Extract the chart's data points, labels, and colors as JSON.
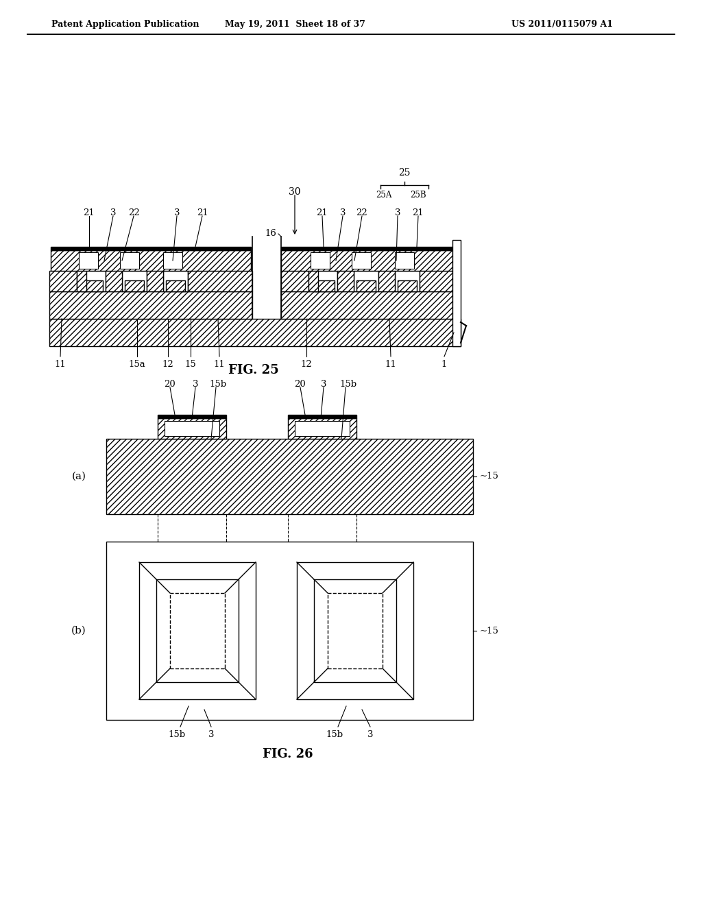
{
  "header_left": "Patent Application Publication",
  "header_mid": "May 19, 2011  Sheet 18 of 37",
  "header_right": "US 2011/0115079 A1",
  "fig25_caption": "FIG. 25",
  "fig26_caption": "FIG. 26",
  "bg_color": "#ffffff"
}
